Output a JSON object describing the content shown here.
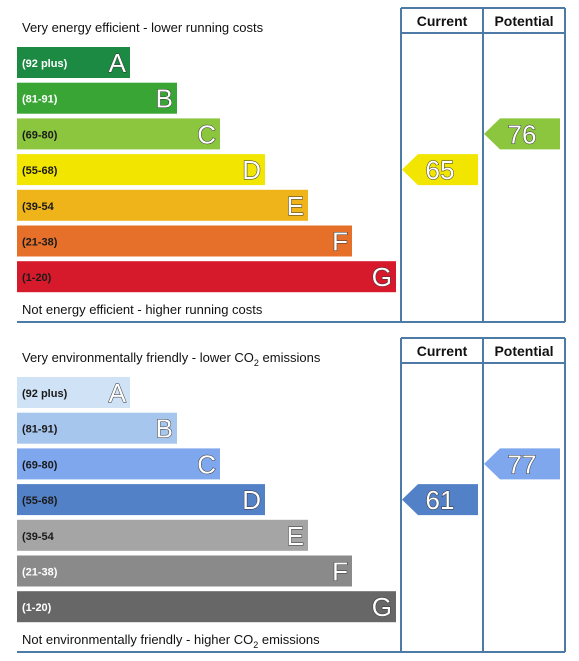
{
  "panels": [
    {
      "title_top": [
        "Very energy efficient - lower running costs"
      ],
      "title_bottom": [
        "Not energy efficient - higher running costs"
      ],
      "headers": [
        "Current",
        "Potential"
      ],
      "bands": [
        {
          "range": "(92 plus)",
          "letter": "A",
          "color": "#1c8a43",
          "text_color": "#ffffff"
        },
        {
          "range": "(81-91)",
          "letter": "B",
          "color": "#38a535",
          "text_color": "#ffffff"
        },
        {
          "range": "(69-80)",
          "letter": "C",
          "color": "#8cc63f",
          "text_color": "#1a1a1a"
        },
        {
          "range": "(55-68)",
          "letter": "D",
          "color": "#f2e500",
          "text_color": "#1a1a1a"
        },
        {
          "range": "(39-54",
          "letter": "E",
          "color": "#f0b41b",
          "text_color": "#1a1a1a"
        },
        {
          "range": "(21-38)",
          "letter": "F",
          "color": "#e6702a",
          "text_color": "#1a1a1a"
        },
        {
          "range": "(1-20)",
          "letter": "G",
          "color": "#d71a2b",
          "text_color": "#1a1a1a"
        }
      ],
      "current": 65,
      "potential": 76
    },
    {
      "title_top": [
        "Very environmentally friendly - lower CO",
        "2",
        " emissions"
      ],
      "title_bottom": [
        "Not environmentally friendly - higher CO",
        "2",
        " emissions"
      ],
      "headers": [
        "Current",
        "Potential"
      ],
      "bands": [
        {
          "range": "(92 plus)",
          "letter": "A",
          "color": "#cfe2f6",
          "text_color": "#1a1a1a"
        },
        {
          "range": "(81-91)",
          "letter": "B",
          "color": "#a6c6ee",
          "text_color": "#1a1a1a"
        },
        {
          "range": "(69-80)",
          "letter": "C",
          "color": "#7ea7ee",
          "text_color": "#1a1a1a"
        },
        {
          "range": "(55-68)",
          "letter": "D",
          "color": "#5381c8",
          "text_color": "#1a1a1a"
        },
        {
          "range": "(39-54",
          "letter": "E",
          "color": "#a5a5a5",
          "text_color": "#1a1a1a"
        },
        {
          "range": "(21-38)",
          "letter": "F",
          "color": "#8a8a8a",
          "text_color": "#ffffff"
        },
        {
          "range": "(1-20)",
          "letter": "G",
          "color": "#676767",
          "text_color": "#ffffff"
        }
      ],
      "current": 61,
      "potential": 77
    }
  ]
}
